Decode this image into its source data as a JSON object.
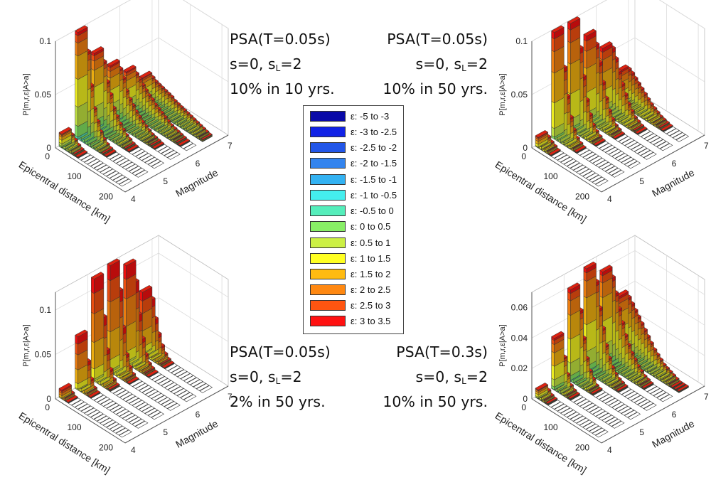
{
  "legend": {
    "title": "",
    "entries": [
      {
        "label": "ε: -5 to -3",
        "color": "#0a0aa8"
      },
      {
        "label": "ε: -3 to -2.5",
        "color": "#1122e6"
      },
      {
        "label": "ε: -2.5 to -2",
        "color": "#2256e8"
      },
      {
        "label": "ε: -2 to -1.5",
        "color": "#3384ee"
      },
      {
        "label": "ε: -1.5 to -1",
        "color": "#33b2f2"
      },
      {
        "label": "ε: -1 to -0.5",
        "color": "#44eeee"
      },
      {
        "label": "ε: -0.5 to 0",
        "color": "#55eebb"
      },
      {
        "label": "ε: 0 to 0.5",
        "color": "#88ee66"
      },
      {
        "label": "ε: 0.5 to 1",
        "color": "#ccf044"
      },
      {
        "label": "ε: 1 to 1.5",
        "color": "#ffff22"
      },
      {
        "label": "ε: 1.5 to 2",
        "color": "#ffbb11"
      },
      {
        "label": "ε: 2 to 2.5",
        "color": "#ff8811"
      },
      {
        "label": "ε: 2.5 to 3",
        "color": "#ff5511"
      },
      {
        "label": "ε: 3 to 3.5",
        "color": "#ff1111"
      }
    ]
  },
  "chart_data": [
    {
      "type": "bar3d",
      "title_lines": [
        "PSA(T=0.05s)",
        "s=0, s",
        "L",
        "=2",
        "10% in 10 yrs."
      ],
      "zlabel": "P[m,r,ε|A>a]",
      "xlabel": "Epicentral distance [km]",
      "ylabel": "Magnitude",
      "z_ticks": [
        "0",
        "0.05",
        "0.1"
      ],
      "z_tick_values": [
        0,
        0.05,
        0.1
      ],
      "zlim": [
        0,
        0.1
      ],
      "x_ticks": [
        "0",
        "100",
        "200"
      ],
      "y_ticks": [
        "4",
        "5",
        "6",
        "7"
      ],
      "magnitudes": [
        4.25,
        4.75,
        5.25,
        5.75,
        6.25,
        6.75
      ],
      "distance_bins": [
        0,
        10,
        20,
        30,
        40,
        50,
        60,
        70,
        80,
        90,
        100,
        110,
        120,
        130,
        140,
        150,
        160,
        170,
        180,
        190
      ],
      "totals": [
        [
          0.013,
          0.01,
          0.007,
          0.004,
          0.002,
          0.001,
          0,
          0,
          0,
          0,
          0,
          0,
          0,
          0,
          0,
          0,
          0,
          0,
          0,
          0
        ],
        [
          0.1,
          0.08,
          0.05,
          0.03,
          0.02,
          0.012,
          0.007,
          0.004,
          0.002,
          0.001,
          0,
          0,
          0,
          0,
          0,
          0,
          0,
          0,
          0,
          0
        ],
        [
          0.072,
          0.062,
          0.045,
          0.035,
          0.024,
          0.018,
          0.013,
          0.009,
          0.006,
          0.004,
          0.002,
          0.001,
          0,
          0,
          0,
          0,
          0,
          0,
          0,
          0
        ],
        [
          0.052,
          0.047,
          0.04,
          0.03,
          0.024,
          0.02,
          0.016,
          0.013,
          0.01,
          0.008,
          0.006,
          0.004,
          0.003,
          0.002,
          0.001,
          0,
          0,
          0,
          0,
          0
        ],
        [
          0.038,
          0.034,
          0.031,
          0.027,
          0.024,
          0.021,
          0.019,
          0.016,
          0.014,
          0.012,
          0.01,
          0.008,
          0.006,
          0.005,
          0.004,
          0.003,
          0.002,
          0.001,
          0,
          0
        ],
        [
          0.024,
          0.022,
          0.02,
          0.019,
          0.018,
          0.017,
          0.016,
          0.015,
          0.013,
          0.012,
          0.011,
          0.01,
          0.009,
          0.008,
          0.007,
          0.006,
          0.005,
          0.004,
          0.003,
          0.002
        ]
      ],
      "epsilon_mix": [
        0,
        0,
        0,
        0,
        0,
        0,
        0.02,
        0.1,
        0.18,
        0.26,
        0.22,
        0.12,
        0.07,
        0.03
      ]
    },
    {
      "type": "bar3d",
      "title_lines": [
        "PSA(T=0.05s)",
        "s=0, s",
        "L",
        "=2",
        "10% in 50 yrs."
      ],
      "zlabel": "P[m,r,ε|A>a]",
      "xlabel": "Epicentral distance [km]",
      "ylabel": "Magnitude",
      "z_ticks": [
        "0",
        "0.05",
        "0.1"
      ],
      "z_tick_values": [
        0,
        0.05,
        0.1
      ],
      "zlim": [
        0,
        0.1
      ],
      "x_ticks": [
        "0",
        "100",
        "200"
      ],
      "y_ticks": [
        "4",
        "5",
        "6",
        "7"
      ],
      "magnitudes": [
        4.25,
        4.75,
        5.25,
        5.75,
        6.25,
        6.75
      ],
      "distance_bins": [
        0,
        10,
        20,
        30,
        40,
        50,
        60,
        70,
        80,
        90,
        100,
        110,
        120,
        130,
        140,
        150,
        160,
        170,
        180,
        190
      ],
      "totals": [
        [
          0.01,
          0.008,
          0.005,
          0.003,
          0.001,
          0,
          0,
          0,
          0,
          0,
          0,
          0,
          0,
          0,
          0,
          0,
          0,
          0,
          0,
          0
        ],
        [
          0.1,
          0.065,
          0.04,
          0.022,
          0.012,
          0.006,
          0.003,
          0.001,
          0,
          0,
          0,
          0,
          0,
          0,
          0,
          0,
          0,
          0,
          0,
          0
        ],
        [
          0.1,
          0.075,
          0.05,
          0.03,
          0.018,
          0.01,
          0.006,
          0.003,
          0.001,
          0,
          0,
          0,
          0,
          0,
          0,
          0,
          0,
          0,
          0,
          0
        ],
        [
          0.08,
          0.07,
          0.055,
          0.038,
          0.025,
          0.015,
          0.009,
          0.005,
          0.003,
          0.001,
          0,
          0,
          0,
          0,
          0,
          0,
          0,
          0,
          0,
          0
        ],
        [
          0.06,
          0.058,
          0.05,
          0.04,
          0.03,
          0.022,
          0.015,
          0.01,
          0.006,
          0.004,
          0.002,
          0.001,
          0,
          0,
          0,
          0,
          0,
          0,
          0,
          0
        ],
        [
          0.03,
          0.03,
          0.028,
          0.025,
          0.022,
          0.019,
          0.016,
          0.013,
          0.01,
          0.008,
          0.006,
          0.004,
          0.003,
          0.002,
          0.001,
          0,
          0,
          0,
          0,
          0
        ]
      ],
      "epsilon_mix": [
        0,
        0,
        0,
        0,
        0,
        0,
        0,
        0.02,
        0.08,
        0.24,
        0.28,
        0.2,
        0.12,
        0.06
      ]
    },
    {
      "type": "bar3d",
      "title_lines": [
        "PSA(T=0.05s)",
        "s=0, s",
        "L",
        "=2",
        "2% in 50 yrs."
      ],
      "zlabel": "P[m,r,ε|A>a]",
      "xlabel": "Epicentral distance [km]",
      "ylabel": "Magnitude",
      "z_ticks": [
        "0",
        "0.05",
        "0.1"
      ],
      "z_tick_values": [
        0,
        0.05,
        0.1
      ],
      "zlim": [
        0,
        0.12
      ],
      "x_ticks": [
        "0",
        "100",
        "200"
      ],
      "y_ticks": [
        "4",
        "5",
        "6",
        "7"
      ],
      "magnitudes": [
        4.25,
        4.75,
        5.25,
        5.75,
        6.25,
        6.75
      ],
      "distance_bins": [
        0,
        10,
        20,
        30,
        40,
        50,
        60,
        70,
        80,
        90,
        100,
        110,
        120,
        130,
        140,
        150,
        160,
        170,
        180,
        190
      ],
      "totals": [
        [
          0.01,
          0.004,
          0.001,
          0,
          0,
          0,
          0,
          0,
          0,
          0,
          0,
          0,
          0,
          0,
          0,
          0,
          0,
          0,
          0,
          0
        ],
        [
          0.06,
          0.03,
          0.012,
          0.004,
          0.001,
          0,
          0,
          0,
          0,
          0,
          0,
          0,
          0,
          0,
          0,
          0,
          0,
          0,
          0,
          0
        ],
        [
          0.115,
          0.07,
          0.035,
          0.015,
          0.006,
          0.002,
          0,
          0,
          0,
          0,
          0,
          0,
          0,
          0,
          0,
          0,
          0,
          0,
          0,
          0
        ],
        [
          0.12,
          0.09,
          0.05,
          0.022,
          0.01,
          0.004,
          0.001,
          0,
          0,
          0,
          0,
          0,
          0,
          0,
          0,
          0,
          0,
          0,
          0,
          0
        ],
        [
          0.11,
          0.09,
          0.055,
          0.03,
          0.014,
          0.006,
          0.003,
          0.001,
          0,
          0,
          0,
          0,
          0,
          0,
          0,
          0,
          0,
          0,
          0,
          0
        ],
        [
          0.07,
          0.06,
          0.04,
          0.025,
          0.014,
          0.007,
          0.003,
          0.001,
          0,
          0,
          0,
          0,
          0,
          0,
          0,
          0,
          0,
          0,
          0,
          0
        ]
      ],
      "epsilon_mix": [
        0,
        0,
        0,
        0,
        0,
        0,
        0,
        0,
        0.02,
        0.1,
        0.26,
        0.28,
        0.2,
        0.14
      ]
    },
    {
      "type": "bar3d",
      "title_lines": [
        "PSA(T=0.3s)",
        "s=0, s",
        "L",
        "=2",
        "10% in 50 yrs."
      ],
      "zlabel": "P[m,r,ε|A>a]",
      "xlabel": "Epicentral distance [km]",
      "ylabel": "Magnitude",
      "z_ticks": [
        "0",
        "0.02",
        "0.04",
        "0.06"
      ],
      "z_tick_values": [
        0,
        0.02,
        0.04,
        0.06
      ],
      "zlim": [
        0,
        0.07
      ],
      "x_ticks": [
        "0",
        "100",
        "200"
      ],
      "y_ticks": [
        "4",
        "5",
        "6",
        "7"
      ],
      "magnitudes": [
        4.25,
        4.75,
        5.25,
        5.75,
        6.25,
        6.75
      ],
      "distance_bins": [
        0,
        10,
        20,
        30,
        40,
        50,
        60,
        70,
        80,
        90,
        100,
        110,
        120,
        130,
        140,
        150,
        160,
        170,
        180,
        190
      ],
      "totals": [
        [
          0.006,
          0.004,
          0.002,
          0.001,
          0,
          0,
          0,
          0,
          0,
          0,
          0,
          0,
          0,
          0,
          0,
          0,
          0,
          0,
          0,
          0
        ],
        [
          0.034,
          0.02,
          0.01,
          0.004,
          0.002,
          0.001,
          0,
          0,
          0,
          0,
          0,
          0,
          0,
          0,
          0,
          0,
          0,
          0,
          0,
          0
        ],
        [
          0.06,
          0.045,
          0.028,
          0.016,
          0.009,
          0.005,
          0.002,
          0.001,
          0,
          0,
          0,
          0,
          0,
          0,
          0,
          0,
          0,
          0,
          0,
          0
        ],
        [
          0.068,
          0.058,
          0.042,
          0.03,
          0.02,
          0.013,
          0.008,
          0.005,
          0.003,
          0.002,
          0.001,
          0,
          0,
          0,
          0,
          0,
          0,
          0,
          0,
          0
        ],
        [
          0.06,
          0.055,
          0.046,
          0.037,
          0.029,
          0.022,
          0.017,
          0.013,
          0.01,
          0.007,
          0.005,
          0.003,
          0.002,
          0.001,
          0,
          0,
          0,
          0,
          0,
          0
        ],
        [
          0.038,
          0.036,
          0.033,
          0.03,
          0.027,
          0.024,
          0.021,
          0.018,
          0.015,
          0.012,
          0.01,
          0.008,
          0.006,
          0.005,
          0.004,
          0.003,
          0.002,
          0.001,
          0.001,
          0.001
        ]
      ],
      "epsilon_mix": [
        0,
        0,
        0,
        0,
        0,
        0,
        0.01,
        0.05,
        0.14,
        0.26,
        0.26,
        0.16,
        0.08,
        0.04
      ]
    }
  ]
}
